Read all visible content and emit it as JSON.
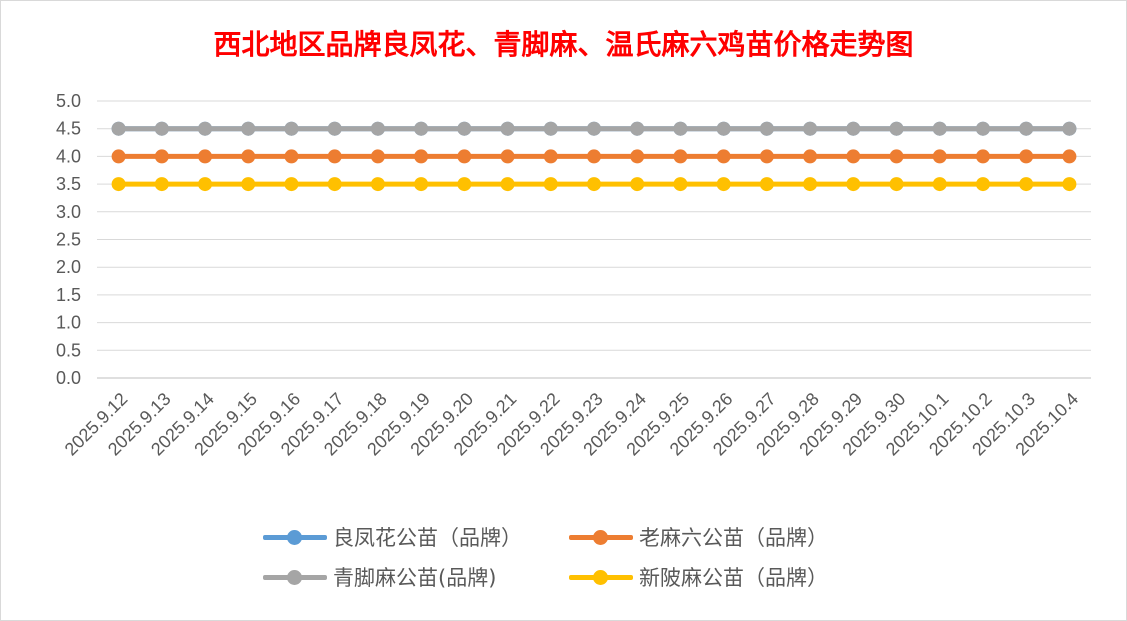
{
  "chart_data": {
    "type": "line",
    "title": "西北地区品牌良凤花、青脚麻、温氏麻六鸡苗价格走势图",
    "xlabel": "",
    "ylabel": "",
    "ylim": [
      0,
      5
    ],
    "ytick_step": 0.5,
    "yticks": [
      "0.0",
      "0.5",
      "1.0",
      "1.5",
      "2.0",
      "2.5",
      "3.0",
      "3.5",
      "4.0",
      "4.5",
      "5.0"
    ],
    "grid": true,
    "legend_position": "bottom",
    "categories": [
      "2025.9.12",
      "2025.9.13",
      "2025.9.14",
      "2025.9.15",
      "2025.9.16",
      "2025.9.17",
      "2025.9.18",
      "2025.9.19",
      "2025.9.20",
      "2025.9.21",
      "2025.9.22",
      "2025.9.23",
      "2025.9.24",
      "2025.9.25",
      "2025.9.26",
      "2025.9.27",
      "2025.9.28",
      "2025.9.29",
      "2025.9.30",
      "2025.10.1",
      "2025.10.2",
      "2025.10.3",
      "2025.10.4"
    ],
    "series": [
      {
        "name": "良凤花公苗（品牌）",
        "color": "#5b9bd5",
        "values": [
          4.5,
          4.5,
          4.5,
          4.5,
          4.5,
          4.5,
          4.5,
          4.5,
          4.5,
          4.5,
          4.5,
          4.5,
          4.5,
          4.5,
          4.5,
          4.5,
          4.5,
          4.5,
          4.5,
          4.5,
          4.5,
          4.5,
          4.5
        ]
      },
      {
        "name": "老麻六公苗（品牌）",
        "color": "#ed7d31",
        "values": [
          4.0,
          4.0,
          4.0,
          4.0,
          4.0,
          4.0,
          4.0,
          4.0,
          4.0,
          4.0,
          4.0,
          4.0,
          4.0,
          4.0,
          4.0,
          4.0,
          4.0,
          4.0,
          4.0,
          4.0,
          4.0,
          4.0,
          4.0
        ]
      },
      {
        "name": "青脚麻公苗(品牌)",
        "color": "#a5a5a5",
        "values": [
          4.5,
          4.5,
          4.5,
          4.5,
          4.5,
          4.5,
          4.5,
          4.5,
          4.5,
          4.5,
          4.5,
          4.5,
          4.5,
          4.5,
          4.5,
          4.5,
          4.5,
          4.5,
          4.5,
          4.5,
          4.5,
          4.5,
          4.5
        ]
      },
      {
        "name": "新陂麻公苗（品牌）",
        "color": "#ffc000",
        "values": [
          3.5,
          3.5,
          3.5,
          3.5,
          3.5,
          3.5,
          3.5,
          3.5,
          3.5,
          3.5,
          3.5,
          3.5,
          3.5,
          3.5,
          3.5,
          3.5,
          3.5,
          3.5,
          3.5,
          3.5,
          3.5,
          3.5,
          3.5
        ]
      }
    ]
  }
}
